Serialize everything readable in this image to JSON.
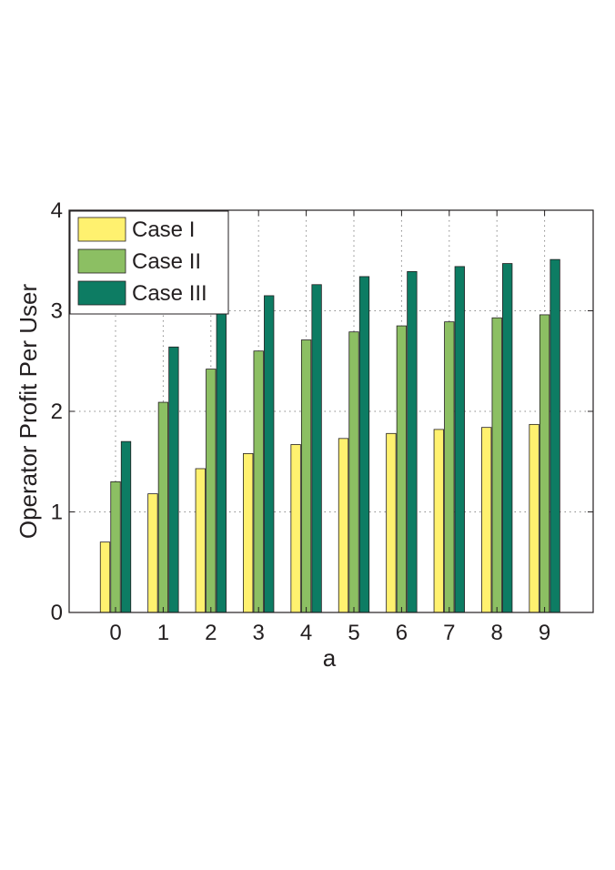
{
  "chart_data": {
    "type": "bar",
    "xlabel": "a",
    "ylabel": "Operator Profit Per User",
    "categories": [
      "0",
      "1",
      "2",
      "3",
      "4",
      "5",
      "6",
      "7",
      "8",
      "9"
    ],
    "ylim": [
      0,
      4
    ],
    "yticks": [
      "0",
      "1",
      "2",
      "3",
      "4"
    ],
    "grid": true,
    "legend_position": "top-left",
    "series": [
      {
        "name": "Case I",
        "color": "#fff16f",
        "values": [
          0.7,
          1.18,
          1.43,
          1.58,
          1.67,
          1.73,
          1.78,
          1.82,
          1.84,
          1.87
        ]
      },
      {
        "name": "Case II",
        "color": "#8cbf63",
        "values": [
          1.3,
          2.09,
          2.42,
          2.6,
          2.71,
          2.79,
          2.85,
          2.89,
          2.93,
          2.96
        ]
      },
      {
        "name": "Case III",
        "color": "#0d7c63",
        "values": [
          1.7,
          2.64,
          3.0,
          3.15,
          3.26,
          3.34,
          3.39,
          3.44,
          3.47,
          3.51
        ]
      }
    ]
  }
}
